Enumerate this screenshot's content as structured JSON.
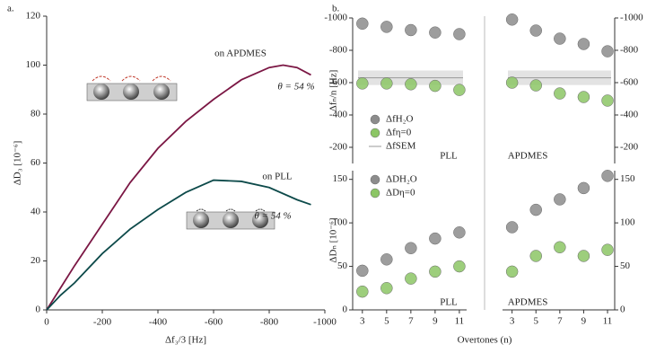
{
  "chart_data": [
    {
      "type": "line",
      "label": "a.",
      "xlabel": "Δf₃/3 [Hz]",
      "ylabel": "ΔD₃ [10⁻⁶]",
      "xlim": [
        0,
        -1000
      ],
      "ylim": [
        0,
        120
      ],
      "xticks": [
        0,
        -200,
        -400,
        -600,
        -800,
        -1000
      ],
      "yticks": [
        0,
        20,
        40,
        60,
        80,
        100,
        120
      ],
      "series": [
        {
          "name": "on APDMES",
          "color": "#7b1744",
          "x": [
            0,
            -50,
            -100,
            -200,
            -300,
            -400,
            -500,
            -600,
            -700,
            -800,
            -850,
            -900,
            -950
          ],
          "values": [
            0,
            9,
            18,
            35,
            52,
            66,
            77,
            86,
            94,
            99,
            100,
            99,
            96
          ]
        },
        {
          "name": "on PLL",
          "color": "#0d4a4a",
          "x": [
            0,
            -50,
            -100,
            -200,
            -300,
            -400,
            -500,
            -600,
            -700,
            -800,
            -900,
            -950
          ],
          "values": [
            0,
            6,
            11,
            23,
            33,
            41,
            48,
            53,
            52.5,
            50,
            45,
            43
          ]
        }
      ],
      "annotations": [
        "θ = 54 %",
        "θ = 54 %"
      ]
    },
    {
      "type": "scatter",
      "label": "b.",
      "ylabel": "Δfₙ/n [Hz]",
      "xlim": [
        2.2,
        11.6
      ],
      "xticks": [
        3,
        5,
        7,
        9,
        11
      ],
      "x": [
        3,
        5,
        7,
        9,
        11
      ],
      "ylim": [
        -100,
        -1000
      ],
      "yticks": [
        -1000,
        -800,
        -600,
        -400,
        -200
      ],
      "panels": [
        "PLL",
        "APDMES"
      ],
      "panel_colors": [
        "#0d4a4a",
        "#7b1744"
      ],
      "series": [
        {
          "name": "ΔfH₂O",
          "color": "#8c8c8c",
          "values": [
            [
              -965,
              -945,
              -925,
              -910,
              -900
            ],
            [
              -990,
              -922,
              -872,
              -839,
              -794
            ]
          ]
        },
        {
          "name": "Δfη=0",
          "color": "#8cc665",
          "values": [
            [
              -595,
              -595,
              -590,
              -580,
              -555
            ],
            [
              -600,
              -583,
              -533,
              -511,
              -489
            ]
          ]
        }
      ],
      "reference": {
        "name": "ΔfSEM",
        "color": "#999999",
        "values": [
          -630,
          -630
        ],
        "errors": [
          45,
          45
        ]
      }
    },
    {
      "type": "scatter",
      "xlabel": "Overtones (n)",
      "ylabel": "ΔDₙ [10⁻⁶]",
      "xlim": [
        2.2,
        11.6
      ],
      "xticks": [
        3,
        5,
        7,
        9,
        11
      ],
      "x": [
        3,
        5,
        7,
        9,
        11
      ],
      "ylim": [
        0,
        160
      ],
      "yticks": [
        0,
        50,
        100,
        150
      ],
      "panels": [
        "PLL",
        "APDMES"
      ],
      "panel_colors": [
        "#0d4a4a",
        "#7b1744"
      ],
      "series": [
        {
          "name": "ΔDH₂O",
          "color": "#8c8c8c",
          "values": [
            [
              45,
              58,
              71,
              82,
              89
            ],
            [
              95,
              115,
              127,
              140,
              154
            ]
          ]
        },
        {
          "name": "ΔDη=0",
          "color": "#8cc665",
          "values": [
            [
              21,
              25,
              36,
              44,
              50
            ],
            [
              44,
              62,
              72,
              62,
              69
            ]
          ]
        }
      ]
    }
  ]
}
